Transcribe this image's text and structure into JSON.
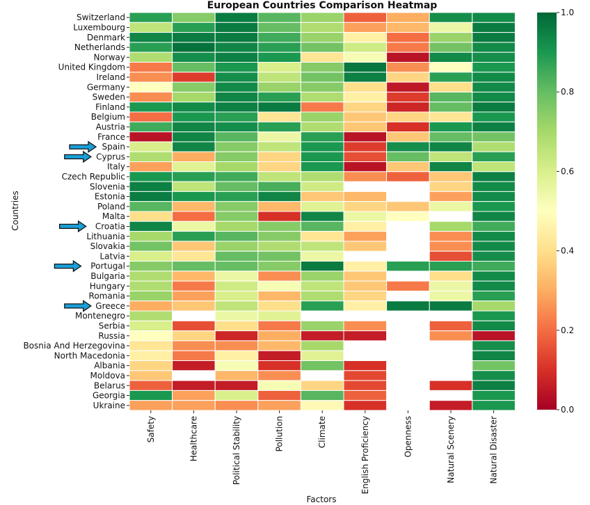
{
  "chart_data": {
    "type": "heatmap",
    "title": "European Countries Comparison Heatmap",
    "xlabel": "Factors",
    "ylabel": "Countries",
    "colormap": "RdYlGn",
    "vmin": 0.0,
    "vmax": 1.0,
    "colorbar_ticks": [
      "0.0",
      "0.2",
      "0.4",
      "0.6",
      "0.8",
      "1.0"
    ],
    "colorbar_tick_values": [
      0,
      0.2,
      0.4,
      0.6,
      0.8,
      1.0
    ],
    "arrow_color": "#1a9fd8",
    "highlighted_countries": [
      "Spain",
      "Cyprus",
      "Croatia",
      "Portugal",
      "Greece"
    ],
    "factors": [
      "Safety",
      "Healthcare",
      "Political Stability",
      "Pollution",
      "Climate",
      "English Proficiency",
      "Openness",
      "Natural Scenery",
      "Natural Disaster"
    ],
    "countries": [
      "Switzerland",
      "Luxembourg",
      "Denmark",
      "Netherlands",
      "Norway",
      "United Kingdom",
      "Ireland",
      "Germany",
      "Sweden",
      "Finland",
      "Belgium",
      "Austria",
      "France",
      "Spain",
      "Cyprus",
      "Italy",
      "Czech Republic",
      "Slovenia",
      "Estonia",
      "Poland",
      "Malta",
      "Croatia",
      "Lithuania",
      "Slovakia",
      "Latvia",
      "Portugal",
      "Bulgaria",
      "Hungary",
      "Romania",
      "Greece",
      "Montenegro",
      "Serbia",
      "Russia",
      "Bosnia And Herzegovina",
      "North Macedonia",
      "Albania",
      "Moldova",
      "Belarus",
      "Georgia",
      "Ukraine"
    ],
    "values": [
      [
        0.88,
        0.75,
        0.96,
        0.82,
        0.72,
        0.18,
        0.3,
        0.92,
        0.93
      ],
      [
        0.65,
        0.88,
        0.96,
        0.8,
        0.68,
        0.28,
        0.32,
        0.55,
        0.96
      ],
      [
        0.94,
        0.96,
        0.96,
        0.85,
        0.72,
        0.45,
        0.2,
        0.72,
        0.96
      ],
      [
        0.88,
        0.98,
        0.94,
        0.88,
        0.78,
        0.62,
        0.22,
        0.78,
        0.93
      ],
      [
        0.68,
        0.92,
        0.95,
        0.9,
        0.42,
        0.52,
        0.04,
        0.93,
        0.92
      ],
      [
        0.22,
        0.8,
        0.9,
        0.6,
        0.75,
        0.97,
        0.25,
        0.5,
        0.9
      ],
      [
        0.25,
        0.12,
        0.92,
        0.65,
        0.78,
        0.95,
        0.38,
        0.88,
        0.93
      ],
      [
        0.5,
        0.75,
        0.93,
        0.72,
        0.75,
        0.4,
        0.05,
        0.4,
        0.93
      ],
      [
        0.25,
        0.7,
        0.94,
        0.88,
        0.68,
        0.45,
        0.12,
        0.82,
        0.93
      ],
      [
        0.9,
        0.93,
        0.95,
        0.96,
        0.22,
        0.38,
        0.08,
        0.8,
        0.96
      ],
      [
        0.2,
        0.9,
        0.88,
        0.42,
        0.72,
        0.35,
        0.38,
        0.42,
        0.9
      ],
      [
        0.85,
        0.94,
        0.92,
        0.88,
        0.68,
        0.35,
        0.1,
        0.9,
        0.95
      ],
      [
        0.04,
        0.94,
        0.82,
        0.55,
        0.88,
        0.04,
        0.35,
        0.8,
        0.78
      ],
      [
        0.6,
        0.94,
        0.75,
        0.65,
        0.9,
        0.12,
        0.92,
        0.94,
        0.68
      ],
      [
        0.68,
        0.3,
        0.75,
        0.38,
        0.9,
        0.15,
        0.8,
        0.65,
        0.88
      ],
      [
        0.28,
        0.58,
        0.7,
        0.38,
        0.9,
        0.04,
        0.35,
        0.94,
        0.65
      ],
      [
        0.9,
        0.88,
        0.85,
        0.65,
        0.68,
        0.25,
        0.18,
        0.35,
        0.95
      ],
      [
        0.95,
        0.65,
        0.8,
        0.84,
        0.62,
        null,
        null,
        0.38,
        0.93
      ],
      [
        0.96,
        0.9,
        0.88,
        0.94,
        0.35,
        0.32,
        null,
        0.28,
        0.93
      ],
      [
        0.82,
        0.32,
        0.75,
        0.32,
        0.58,
        0.38,
        0.35,
        0.55,
        0.9
      ],
      [
        0.4,
        0.2,
        0.75,
        0.1,
        0.94,
        0.55,
        0.5,
        null,
        0.94
      ],
      [
        0.94,
        0.55,
        0.7,
        0.75,
        0.82,
        0.45,
        null,
        0.7,
        0.85
      ],
      [
        0.7,
        0.88,
        0.82,
        0.75,
        0.42,
        0.28,
        null,
        0.25,
        0.93
      ],
      [
        0.78,
        0.35,
        0.72,
        0.68,
        0.65,
        0.35,
        null,
        0.25,
        0.93
      ],
      [
        0.6,
        0.42,
        0.8,
        0.78,
        0.55,
        null,
        null,
        0.15,
        0.92
      ],
      [
        0.75,
        0.8,
        0.8,
        0.75,
        0.96,
        0.45,
        0.88,
        0.88,
        0.85
      ],
      [
        0.68,
        0.32,
        0.55,
        0.25,
        0.72,
        0.35,
        null,
        0.4,
        0.93
      ],
      [
        0.68,
        0.22,
        0.62,
        0.52,
        0.65,
        0.35,
        0.22,
        0.55,
        0.93
      ],
      [
        0.72,
        0.28,
        0.6,
        0.32,
        0.68,
        0.38,
        null,
        0.55,
        0.88
      ],
      [
        0.3,
        0.35,
        0.65,
        0.4,
        0.88,
        0.45,
        0.96,
        0.96,
        0.7
      ],
      [
        0.68,
        null,
        0.55,
        0.58,
        null,
        null,
        null,
        null,
        0.9
      ],
      [
        0.6,
        0.15,
        0.4,
        0.22,
        0.72,
        0.25,
        null,
        0.18,
        0.93
      ],
      [
        0.5,
        0.38,
        0.08,
        0.3,
        0.06,
        0.06,
        null,
        0.25,
        0.04
      ],
      [
        0.42,
        0.25,
        0.25,
        0.32,
        0.7,
        null,
        null,
        null,
        0.92
      ],
      [
        0.45,
        0.22,
        0.45,
        0.06,
        0.58,
        null,
        null,
        null,
        0.94
      ],
      [
        0.38,
        0.06,
        0.52,
        0.1,
        0.78,
        0.1,
        null,
        null,
        0.78
      ],
      [
        0.35,
        null,
        0.32,
        0.25,
        null,
        0.14,
        null,
        null,
        0.92
      ],
      [
        0.18,
        0.06,
        0.06,
        0.52,
        0.38,
        0.14,
        null,
        0.1,
        0.95
      ],
      [
        0.9,
        0.28,
        0.6,
        0.18,
        0.82,
        0.18,
        null,
        null,
        0.9
      ],
      [
        0.28,
        0.28,
        0.25,
        0.28,
        0.48,
        0.1,
        null,
        0.06,
        0.9
      ]
    ]
  }
}
